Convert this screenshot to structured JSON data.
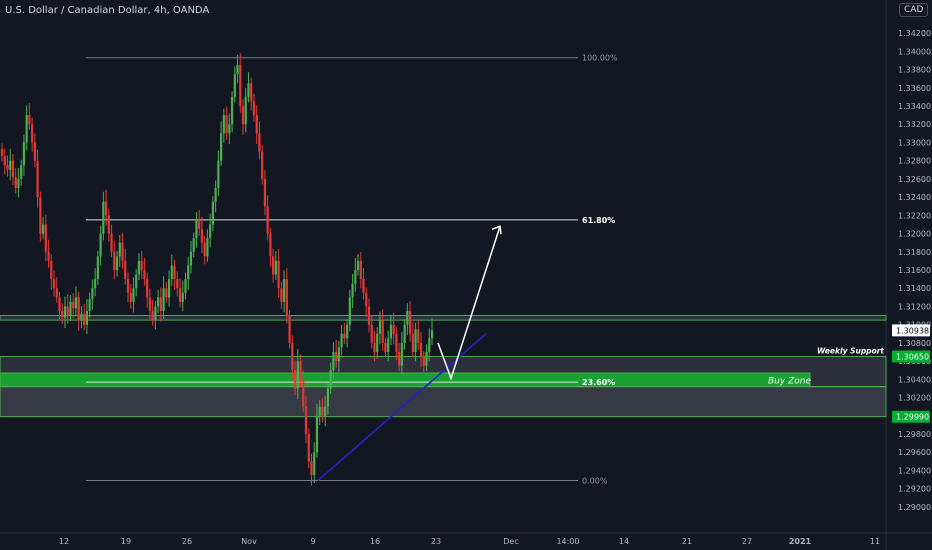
{
  "header": {
    "title": "U.S. Dollar / Canadian Dollar, 4h, OANDA",
    "currency": "CAD"
  },
  "chart_data": {
    "type": "candlestick",
    "interval": "4h",
    "x_ticks": [
      "12",
      "19",
      "26",
      "Nov",
      "9",
      "16",
      "23",
      "Dec",
      "14:00",
      "14",
      "21",
      "27",
      "2021",
      "11"
    ],
    "ylim": [
      1.289,
      1.343
    ],
    "y_ticks": [
      1.29,
      1.292,
      1.294,
      1.296,
      1.298,
      1.302,
      1.304,
      1.306,
      1.308,
      1.31,
      1.312,
      1.314,
      1.316,
      1.318,
      1.32,
      1.322,
      1.324,
      1.326,
      1.328,
      1.33,
      1.332,
      1.334,
      1.336,
      1.338,
      1.34,
      1.342
    ],
    "y_tick_labels": [
      "1.29000",
      "1.29200",
      "1.29400",
      "1.29600",
      "1.29800",
      "1.30200",
      "1.30400",
      "1.30600",
      "1.30800",
      "1.31000",
      "1.31200",
      "1.31400",
      "1.31600",
      "1.31800",
      "1.32000",
      "1.32200",
      "1.32400",
      "1.32600",
      "1.32800",
      "1.33000",
      "1.33200",
      "1.33400",
      "1.33600",
      "1.33800",
      "1.34000",
      "1.34200"
    ],
    "price_labels": [
      {
        "value": 1.30938,
        "text": "1.30938",
        "color": "#ffffff",
        "text_color": "#000000"
      },
      {
        "value": 1.3065,
        "text": "1.30650",
        "color": "#00b030",
        "text_color": "#ffffff"
      },
      {
        "value": 1.2999,
        "text": "1.29990",
        "color": "#00b030",
        "text_color": "#ffffff"
      }
    ],
    "fibonacci": [
      {
        "label": "100.00%",
        "price": 1.3393,
        "bold": false
      },
      {
        "label": "61.80%",
        "price": 1.3215,
        "bold": true
      },
      {
        "label": "23.60%",
        "price": 1.3037,
        "bold": true
      },
      {
        "label": "0.00%",
        "price": 1.2929,
        "bold": false
      }
    ],
    "zones": [
      {
        "name": "resistance",
        "from": 1.3105,
        "to": 1.311,
        "label": ""
      },
      {
        "name": "weekly-support",
        "from": 1.3032,
        "to": 1.3065,
        "label": "Weekly Support"
      },
      {
        "name": "buy-zone",
        "from": 1.3032,
        "to": 1.3047,
        "label": "Buy Zone"
      },
      {
        "name": "lower-zone",
        "from": 1.2999,
        "to": 1.3032,
        "label": ""
      }
    ],
    "closes": [
      1.3285,
      1.3275,
      1.327,
      1.328,
      1.3262,
      1.325,
      1.326,
      1.3275,
      1.33,
      1.333,
      1.332,
      1.33,
      1.328,
      1.324,
      1.32,
      1.321,
      1.318,
      1.317,
      1.315,
      1.314,
      1.313,
      1.3115,
      1.3108,
      1.312,
      1.311,
      1.3125,
      1.3118,
      1.313,
      1.3105,
      1.3112,
      1.31,
      1.3115,
      1.3128,
      1.314,
      1.315,
      1.3175,
      1.32,
      1.3235,
      1.322,
      1.32,
      1.318,
      1.316,
      1.3175,
      1.319,
      1.317,
      1.315,
      1.3135,
      1.3125,
      1.314,
      1.3155,
      1.317,
      1.316,
      1.315,
      1.313,
      1.3115,
      1.3105,
      1.312,
      1.313,
      1.3115,
      1.314,
      1.313,
      1.315,
      1.3165,
      1.315,
      1.314,
      1.3125,
      1.3135,
      1.315,
      1.3165,
      1.318,
      1.3195,
      1.3215,
      1.3205,
      1.319,
      1.3175,
      1.3195,
      1.321,
      1.3235,
      1.325,
      1.328,
      1.331,
      1.333,
      1.331,
      1.332,
      1.335,
      1.3375,
      1.3385,
      1.334,
      1.332,
      1.335,
      1.3365,
      1.3345,
      1.333,
      1.331,
      1.329,
      1.326,
      1.323,
      1.32,
      1.3175,
      1.3155,
      1.317,
      1.314,
      1.3125,
      1.315,
      1.311,
      1.308,
      1.305,
      1.303,
      1.306,
      1.304,
      1.301,
      1.298,
      1.295,
      1.2935,
      1.296,
      1.3,
      1.301,
      1.3,
      1.301,
      1.303,
      1.305,
      1.307,
      1.306,
      1.3075,
      1.309,
      1.3085,
      1.31,
      1.313,
      1.3145,
      1.316,
      1.317,
      1.315,
      1.3135,
      1.312,
      1.31,
      1.308,
      1.307,
      1.309,
      1.3105,
      1.308,
      1.307,
      1.3085,
      1.31,
      1.309,
      1.307,
      1.3055,
      1.308,
      1.31,
      1.3115,
      1.309,
      1.307,
      1.3095,
      1.308,
      1.3065,
      1.3055,
      1.307,
      1.3085,
      1.3094
    ],
    "projection": {
      "from_price": 1.308,
      "mid_price": 1.3041,
      "to_price": 1.3208
    }
  }
}
